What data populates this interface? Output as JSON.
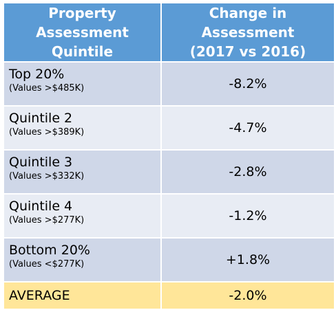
{
  "header": {
    "col1_line1": "Property Assessment",
    "col1_line2": "Quintile",
    "col2_line1": "Change in Assessment",
    "col2_line2": "(2017 vs 2016)"
  },
  "rows": [
    {
      "name": "Top 20%",
      "sub": "(Values >$485K)",
      "value": "-8.2%"
    },
    {
      "name": "Quintile 2",
      "sub": "(Values >$389K)",
      "value": "-4.7%"
    },
    {
      "name": "Quintile 3",
      "sub": "(Values >$332K)",
      "value": "-2.8%"
    },
    {
      "name": "Quintile 4",
      "sub": "(Values >$277K)",
      "value": "-1.2%"
    },
    {
      "name": "Bottom 20%",
      "sub": "(Values <$277K)",
      "value": "+1.8%"
    }
  ],
  "average": {
    "label": "AVERAGE",
    "value": "-2.0%"
  },
  "colors": {
    "header_bg": "#5b9bd5",
    "row_dark": "#cfd7e8",
    "row_light": "#e8ecf4",
    "average_bg": "#ffe699"
  }
}
